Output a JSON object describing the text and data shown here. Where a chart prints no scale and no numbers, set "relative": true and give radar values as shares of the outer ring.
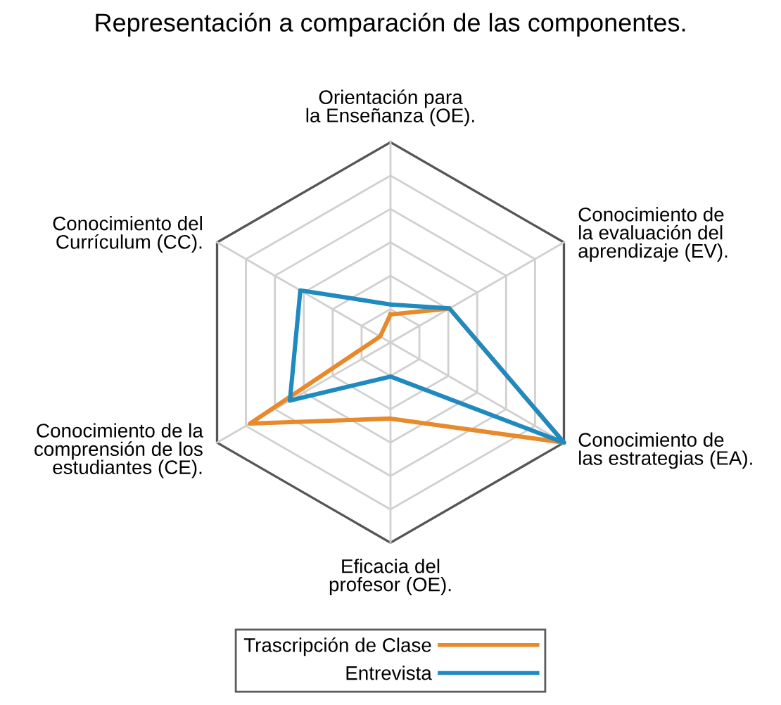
{
  "chart_data": {
    "type": "radar",
    "title": "Representación a comparación de las componentes.",
    "categories": [
      "Orientación para\nla Enseñanza (OE).",
      "Conocimiento de\nla evaluación del\naprendizaje (EV).",
      "Conocimiento de\nlas estrategias (EA).",
      "Eficacia del\nprofesor (OE).",
      "Conocimiento de la\ncomprensión de los\nestudiantes (CE).",
      "Conocimiento del\nCurrículum (CC)."
    ],
    "relative": true,
    "grid": true,
    "legend": "bottom",
    "series": [
      {
        "name": "Trascripción de Clase",
        "color": "#e8892b",
        "values": [
          0.14,
          0.34,
          1.0,
          0.38,
          0.81,
          0.06
        ]
      },
      {
        "name": "Entrevista",
        "color": "#1f8ac0",
        "values": [
          0.19,
          0.34,
          1.0,
          0.17,
          0.58,
          0.52
        ]
      }
    ]
  }
}
